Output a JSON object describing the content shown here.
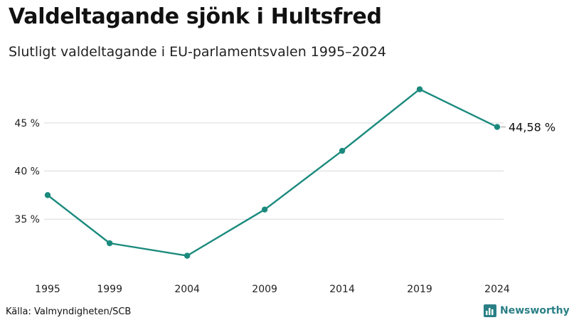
{
  "title": "Valdeltagande sjönk i Hultsfred",
  "subtitle": "Slutligt valdeltagande i EU-parlamentsvalen 1995–2024",
  "source": "Källa: Valmyndigheten/SCB",
  "brand": {
    "name": "Newsworthy",
    "icon": "bar-chart-logo-icon",
    "color": "#2a7f86"
  },
  "chart_data": {
    "type": "line",
    "x": [
      1995,
      1999,
      2004,
      2009,
      2014,
      2019,
      2024
    ],
    "x_tick_labels": [
      "1995",
      "1999",
      "2004",
      "2009",
      "2014",
      "2019",
      "2024"
    ],
    "series": [
      {
        "values": [
          37.5,
          32.5,
          31.2,
          36.0,
          42.1,
          48.5,
          44.58
        ],
        "color": "#1a8a7d"
      }
    ],
    "y_ticks": [
      35,
      40,
      45
    ],
    "y_tick_labels": [
      "35 %",
      "40 %",
      "45 %"
    ],
    "ylim": [
      30.1,
      49.5
    ],
    "end_label": "44,58 %",
    "grid": "horizontal"
  }
}
